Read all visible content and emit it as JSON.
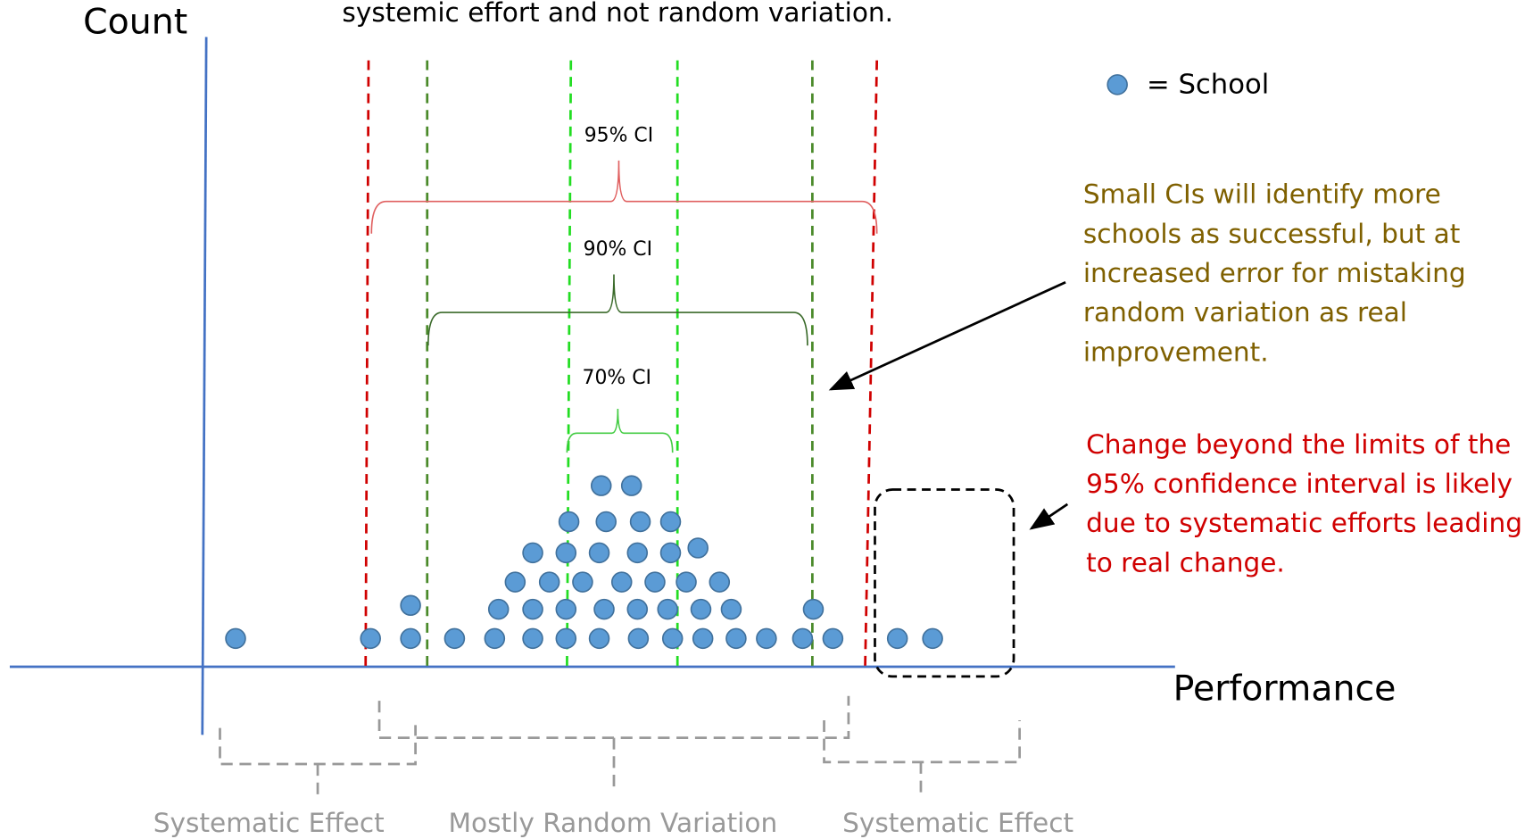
{
  "header": {
    "caption": "systemic effort and not random variation."
  },
  "axes": {
    "y_label": "Count",
    "x_label": "Performance"
  },
  "legend": {
    "label": "= School"
  },
  "intervals": [
    {
      "label": "95% CI"
    },
    {
      "label": "90% CI"
    },
    {
      "label": "70% CI"
    }
  ],
  "annotations": [
    {
      "lines": [
        "Small CIs will identify more",
        "schools as successful, but at",
        "increased error for mistaking",
        "random variation as real",
        "improvement."
      ]
    },
    {
      "lines": [
        "Change beyond the limits of the",
        "95% confidence interval is likely",
        "due to systematic efforts leading",
        "to real change."
      ]
    }
  ],
  "regions": [
    {
      "label": "Systematic Effect"
    },
    {
      "label": "Mostly Random Variation"
    },
    {
      "label": "Systematic Effect"
    }
  ]
}
